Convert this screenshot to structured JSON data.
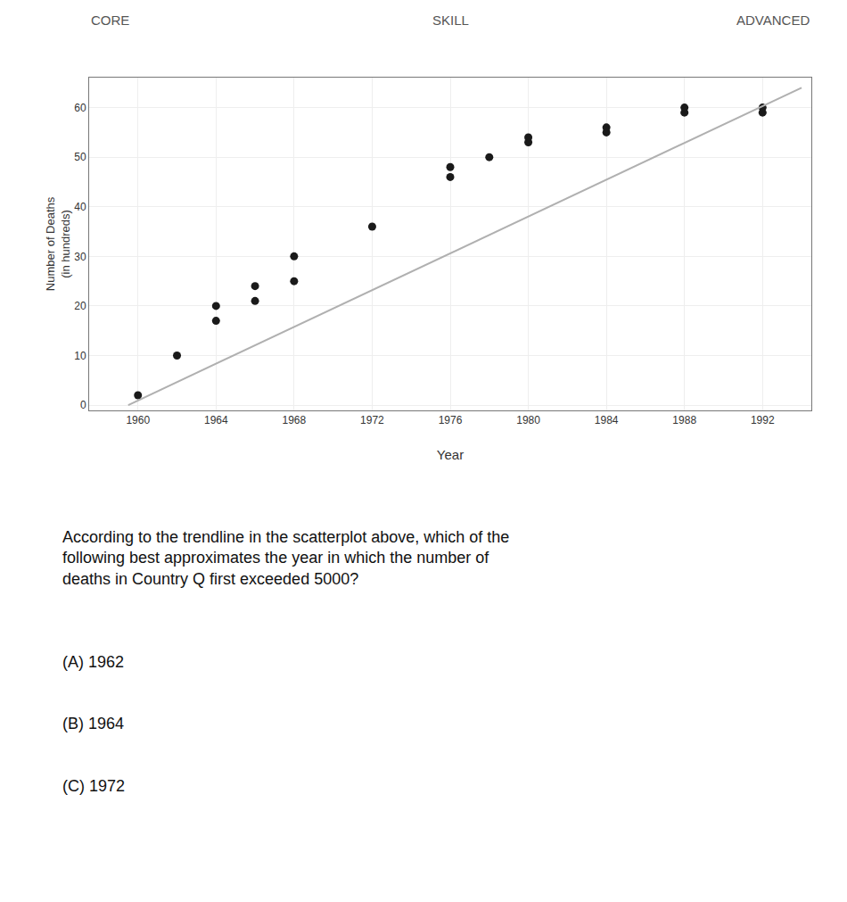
{
  "chart_data": {
    "type": "scatter",
    "series": [
      {
        "type": "scatter",
        "color": "#1a1a1a",
        "marker": "circle",
        "x": [
          1960,
          1962,
          1964,
          1964,
          1966,
          1966,
          1968,
          1968,
          1972,
          1976,
          1976,
          1978,
          1980,
          1980,
          1984,
          1984,
          1988,
          1988,
          1992,
          1992
        ],
        "values": [
          2,
          10,
          17,
          20,
          21,
          24,
          25,
          30,
          36,
          46,
          48,
          50,
          53,
          54,
          55,
          56,
          59,
          60,
          59,
          60
        ]
      },
      {
        "type": "line",
        "color": "#b0b0b0",
        "line_style": "solid",
        "x": [
          1959.5,
          1994
        ],
        "values": [
          0,
          64
        ]
      }
    ],
    "xlabel": "Year",
    "ylabel": "Number of Deaths\n(in hundreds)",
    "xlim": [
      1957.5,
      1994.5
    ],
    "ylim": [
      -1,
      66
    ],
    "xticks": [
      1960,
      1964,
      1968,
      1972,
      1976,
      1980,
      1984,
      1988,
      1992
    ],
    "yticks": [
      0,
      10,
      20,
      30,
      40,
      50,
      60
    ],
    "grid": true,
    "annotations": [
      "CORE",
      "SKILL",
      "ADVANCED",
      "According to the trendline in the scatterplot above, which of the\nfollowing best approximates the year in which the number of\ndeaths in Country Q first exceeded 5000?",
      "(A) 1962",
      "(B) 1964",
      "(C) 1972"
    ]
  }
}
